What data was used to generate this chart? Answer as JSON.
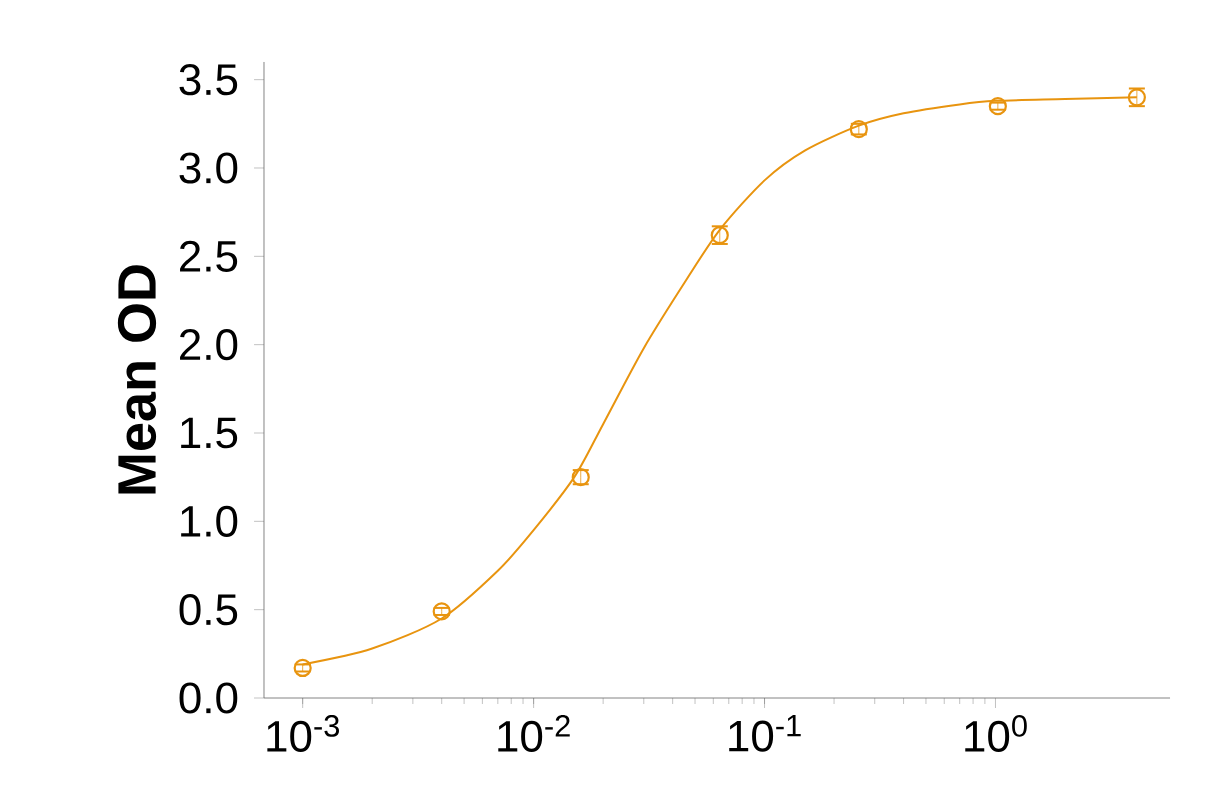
{
  "chart_data": {
    "type": "scatter",
    "ylabel": "Mean OD",
    "log": "x",
    "xlim": [
      0.00068,
      5.7
    ],
    "ylim": [
      0,
      3.6
    ],
    "xticks": [
      {
        "value": 0.001,
        "label": "10$^{-3}$"
      },
      {
        "value": 0.01,
        "label": "10$^{-2}$"
      },
      {
        "value": 0.1,
        "label": "10$^{-1}$"
      },
      {
        "value": 1,
        "label": "10$^{0}$"
      }
    ],
    "yticks": [
      {
        "value": 0,
        "label": "0.0"
      },
      {
        "value": 0.5,
        "label": "0.5"
      },
      {
        "value": 1,
        "label": "1.0"
      },
      {
        "value": 1.5,
        "label": "1.5"
      },
      {
        "value": 2,
        "label": "2.0"
      },
      {
        "value": 2.5,
        "label": "2.5"
      },
      {
        "value": 3,
        "label": "3.0"
      },
      {
        "value": 3.5,
        "label": "3.5"
      }
    ],
    "grid": false,
    "series": [
      {
        "marker": "circle",
        "color": "#e8940f",
        "x": [
          0.001,
          0.004,
          0.016,
          0.064,
          0.256,
          1.024,
          4.096
        ],
        "values": [
          0.17,
          0.49,
          1.25,
          2.62,
          3.22,
          3.35,
          3.4
        ],
        "errors": [
          0.02,
          0.02,
          0.04,
          0.05,
          0.03,
          0.02,
          0.05
        ]
      },
      {
        "type": "line",
        "line_style": "solid",
        "color": "#e8940f",
        "x": [
          0.001,
          0.002,
          0.004,
          0.007,
          0.01,
          0.015,
          0.02,
          0.03,
          0.045,
          0.064,
          0.1,
          0.15,
          0.256,
          0.4,
          0.7,
          1.0,
          2.0,
          4.096
        ],
        "values": [
          0.19,
          0.28,
          0.45,
          0.72,
          0.95,
          1.25,
          1.55,
          1.98,
          2.35,
          2.65,
          2.93,
          3.1,
          3.24,
          3.31,
          3.36,
          3.38,
          3.39,
          3.4
        ]
      }
    ]
  }
}
